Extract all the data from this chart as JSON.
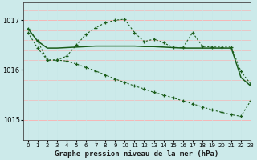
{
  "title": "Graphe pression niveau de la mer (hPa)",
  "bg_color": "#cceaea",
  "grid_color_h": "#f5b8b8",
  "grid_color_v": "#c8e8e8",
  "line_color": "#1a5c1a",
  "xlim": [
    -0.5,
    23
  ],
  "ylim": [
    1014.6,
    1017.35
  ],
  "yticks": [
    1015,
    1016,
    1017
  ],
  "xticks": [
    0,
    1,
    2,
    3,
    4,
    5,
    6,
    7,
    8,
    9,
    10,
    11,
    12,
    13,
    14,
    15,
    16,
    17,
    18,
    19,
    20,
    21,
    22,
    23
  ],
  "series1_x": [
    0,
    1,
    2,
    3,
    4,
    5,
    6,
    7,
    8,
    9,
    10,
    11,
    12,
    13,
    14,
    15,
    16,
    17,
    18,
    19,
    20,
    21,
    22,
    23
  ],
  "series1_y": [
    1016.83,
    1016.58,
    1016.44,
    1016.44,
    1016.45,
    1016.46,
    1016.47,
    1016.48,
    1016.48,
    1016.48,
    1016.48,
    1016.48,
    1016.47,
    1016.47,
    1016.46,
    1016.45,
    1016.44,
    1016.44,
    1016.44,
    1016.44,
    1016.44,
    1016.44,
    1015.85,
    1015.68
  ],
  "series2_x": [
    0,
    1,
    2,
    3,
    4,
    5,
    6,
    7,
    8,
    9,
    10,
    11,
    12,
    13,
    14,
    15,
    16,
    17,
    18,
    19,
    20,
    21,
    22,
    23
  ],
  "series2_y": [
    1016.83,
    1016.58,
    1016.2,
    1016.2,
    1016.28,
    1016.5,
    1016.72,
    1016.85,
    1016.95,
    1017.0,
    1017.02,
    1016.75,
    1016.57,
    1016.62,
    1016.55,
    1016.45,
    1016.45,
    1016.75,
    1016.48,
    1016.46,
    1016.46,
    1016.46,
    1015.97,
    1015.72
  ],
  "series3_x": [
    0,
    1,
    2,
    3,
    4,
    5,
    6,
    7,
    8,
    9,
    10,
    11,
    12,
    13,
    14,
    15,
    16,
    17,
    18,
    19,
    20,
    21,
    22,
    23
  ],
  "series3_y": [
    1016.75,
    1016.44,
    1016.2,
    1016.2,
    1016.18,
    1016.12,
    1016.05,
    1015.98,
    1015.9,
    1015.82,
    1015.75,
    1015.68,
    1015.62,
    1015.55,
    1015.5,
    1015.44,
    1015.38,
    1015.32,
    1015.26,
    1015.2,
    1015.15,
    1015.1,
    1015.07,
    1015.38
  ]
}
